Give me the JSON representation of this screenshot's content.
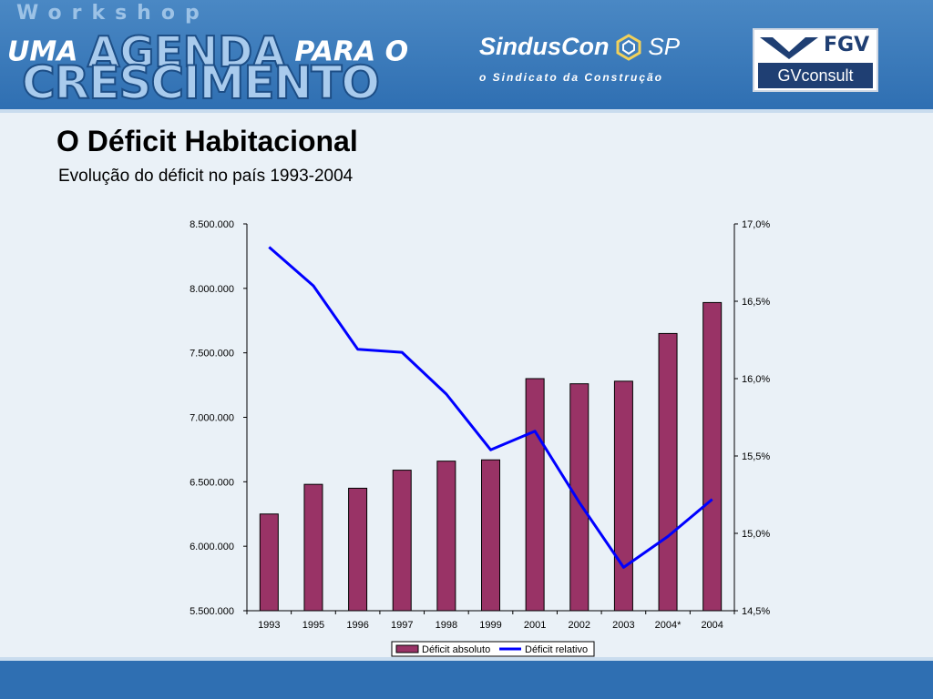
{
  "header": {
    "workshop": "Workshop",
    "logo_uma": "UMA",
    "logo_agenda": "AGENDA",
    "logo_para": "PARA O",
    "logo_crescimento": "CRESCIMENTO",
    "sindus_name": "SindusCon",
    "sindus_sp": "SP",
    "sindus_tagline": "o Sindicato da Construção",
    "fgv_top": "FGV",
    "fgv_bottom": "GVconsult"
  },
  "slide": {
    "title": "O Déficit Habitacional",
    "subtitle": "Evolução do déficit no país 1993-2004"
  },
  "colors": {
    "bar": "#993366",
    "line": "#0000ff",
    "header": "#2f6fb2"
  },
  "chart_data": {
    "type": "bar",
    "categories": [
      "1993",
      "1995",
      "1996",
      "1997",
      "1998",
      "1999",
      "2001",
      "2002",
      "2003",
      "2004*",
      "2004"
    ],
    "series": [
      {
        "name": "Déficit absoluto",
        "type": "bar",
        "axis": "left",
        "values": [
          6250000,
          6480000,
          6450000,
          6590000,
          6660000,
          6670000,
          7300000,
          7260000,
          7280000,
          7650000,
          7890000
        ]
      },
      {
        "name": "Déficit relativo",
        "type": "line",
        "axis": "right",
        "values": [
          16.85,
          16.6,
          16.19,
          16.17,
          15.9,
          15.54,
          15.66,
          15.2,
          14.78,
          14.98,
          15.22
        ]
      }
    ],
    "y_left": {
      "min": 5500000,
      "max": 8500000,
      "ticks": [
        5500000,
        6000000,
        6500000,
        7000000,
        7500000,
        8000000,
        8500000
      ],
      "tick_labels": [
        "5.500.000",
        "6.000.000",
        "6.500.000",
        "7.000.000",
        "7.500.000",
        "8.000.000",
        "8.500.000"
      ]
    },
    "y_right": {
      "min": 14.5,
      "max": 17.0,
      "ticks": [
        14.5,
        15.0,
        15.5,
        16.0,
        16.5,
        17.0
      ],
      "tick_labels": [
        "14,5%",
        "15,0%",
        "15,5%",
        "16,0%",
        "16,5%",
        "17,0%"
      ]
    },
    "grid": false,
    "legend": "bottom"
  }
}
